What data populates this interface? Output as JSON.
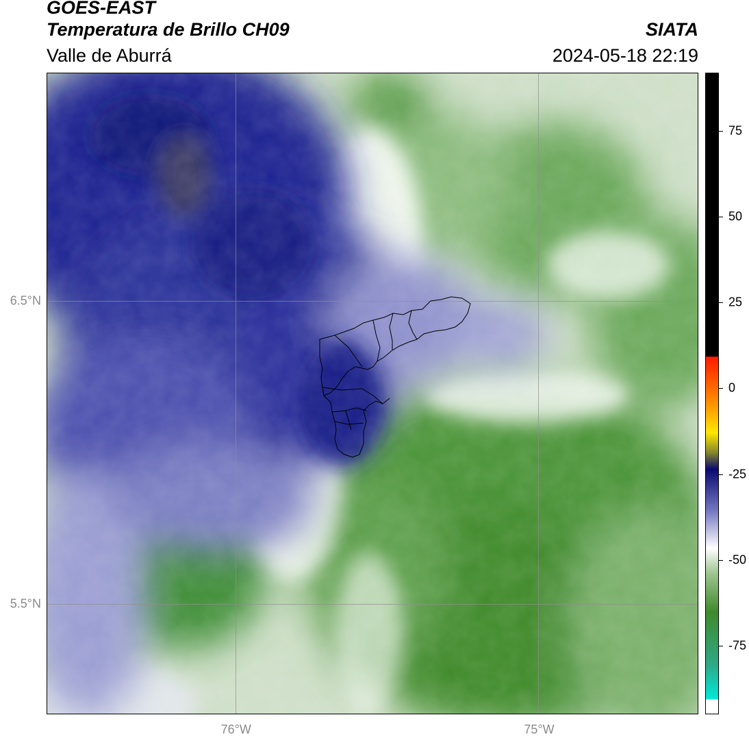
{
  "header": {
    "title": "GOES-EAST",
    "subtitle": "Temperatura de Brillo CH09",
    "region": "Valle de Aburrá",
    "agency": "SIATA",
    "datetime": "2024-05-18 22:19"
  },
  "map": {
    "lon_range": [
      -76.625,
      -74.475
    ],
    "lat_range": [
      5.135,
      7.255
    ],
    "lon_ticks": [
      {
        "value": -76.0,
        "label": "76°W"
      },
      {
        "value": -75.0,
        "label": "75°W"
      }
    ],
    "lat_ticks": [
      {
        "value": 6.5,
        "label": "6.5°N"
      },
      {
        "value": 5.5,
        "label": "5.5°N"
      }
    ],
    "gridlines": true,
    "colors": {
      "cold_blue": "#1a1f8a",
      "mid_blue": "#6f73bf",
      "light": "#ffffff",
      "green": "#3f8a2c",
      "dark_green": "#2f7a1f",
      "boundary": "#000000"
    }
  },
  "colorbar": {
    "range": [
      -95,
      92
    ],
    "ticks": [
      {
        "value": 75,
        "label": "75"
      },
      {
        "value": 50,
        "label": "50"
      },
      {
        "value": 25,
        "label": "25"
      },
      {
        "value": 0,
        "label": "0"
      },
      {
        "value": -25,
        "label": "-25"
      },
      {
        "value": -50,
        "label": "-50"
      },
      {
        "value": -75,
        "label": "-75"
      }
    ]
  }
}
